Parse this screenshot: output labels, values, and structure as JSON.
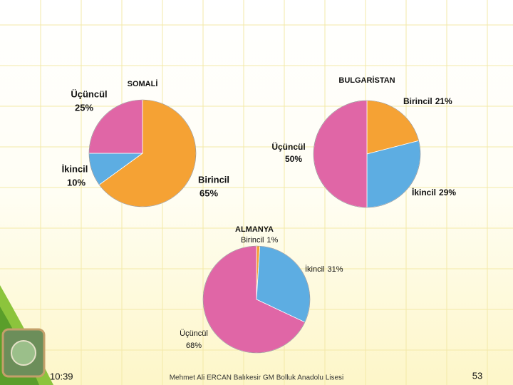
{
  "chart_data": [
    {
      "type": "pie",
      "title": "SOMALİ",
      "categories": [
        "Birincil",
        "İkincil",
        "Üçüncül"
      ],
      "values": [
        65,
        10,
        25
      ],
      "value_labels": [
        "65%",
        "10%",
        "25%"
      ],
      "colors": [
        "#f5a234",
        "#5dade2",
        "#e066a6"
      ]
    },
    {
      "type": "pie",
      "title": "BULGARİSTAN",
      "categories": [
        "Birincil",
        "İkincil",
        "Üçüncül"
      ],
      "values": [
        21,
        29,
        50
      ],
      "value_labels": [
        "21%",
        "29%",
        "50%"
      ],
      "colors": [
        "#f5a234",
        "#5dade2",
        "#e066a6"
      ]
    },
    {
      "type": "pie",
      "title": "ALMANYA",
      "categories": [
        "Birincil",
        "İkincil",
        "Üçüncül"
      ],
      "values": [
        1,
        31,
        68
      ],
      "value_labels": [
        "1%",
        "31%",
        "68%"
      ],
      "colors": [
        "#f5a234",
        "#5dade2",
        "#e066a6"
      ]
    }
  ],
  "footer": {
    "time": "10:39",
    "author": "Mehmet Ali ERCAN  Balıkesir GM Bolluk Anadolu Lisesi",
    "page": "53"
  }
}
